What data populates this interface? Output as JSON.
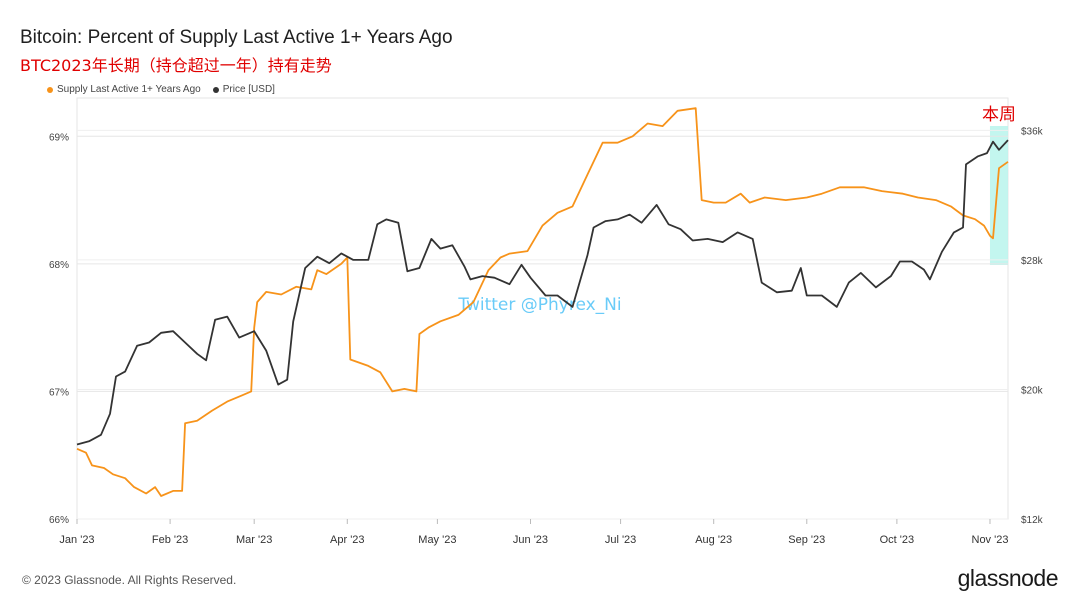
{
  "header": {
    "title": "Bitcoin: Percent of Supply Last Active 1+ Years Ago",
    "subtitle": "BTC2023年长期（持仓超过一年）持有走势"
  },
  "footer": {
    "copyright": "© 2023 Glassnode. All Rights Reserved.",
    "logo_text": "glassnode"
  },
  "colors": {
    "supply": "#f7931a",
    "price": "#333333",
    "highlight": "#b8f5ec",
    "annotation": "#e00000",
    "grid": "#e6e6e6"
  },
  "chart_data": {
    "type": "line",
    "title": "Bitcoin: Percent of Supply Last Active 1+ Years Ago",
    "legend_position": "top-left",
    "grid": true,
    "x_range": [
      "2023-01-01",
      "2023-11-07"
    ],
    "x_ticks": [
      {
        "date": "2023-01-01",
        "label": "Jan '23"
      },
      {
        "date": "2023-02-01",
        "label": "Feb '23"
      },
      {
        "date": "2023-03-01",
        "label": "Mar '23"
      },
      {
        "date": "2023-04-01",
        "label": "Apr '23"
      },
      {
        "date": "2023-05-01",
        "label": "May '23"
      },
      {
        "date": "2023-06-01",
        "label": "Jun '23"
      },
      {
        "date": "2023-07-01",
        "label": "Jul '23"
      },
      {
        "date": "2023-08-01",
        "label": "Aug '23"
      },
      {
        "date": "2023-09-01",
        "label": "Sep '23"
      },
      {
        "date": "2023-10-01",
        "label": "Oct '23"
      },
      {
        "date": "2023-11-01",
        "label": "Nov '23"
      }
    ],
    "y_left": {
      "range": [
        66.0,
        69.3
      ],
      "ticks": [
        {
          "v": 66,
          "label": "66%"
        },
        {
          "v": 67,
          "label": "67%"
        },
        {
          "v": 68,
          "label": "68%"
        },
        {
          "v": 69,
          "label": "69%"
        }
      ]
    },
    "y_right": {
      "range": [
        12000,
        38000
      ],
      "ticks": [
        {
          "v": 12000,
          "label": "$12k"
        },
        {
          "v": 20000,
          "label": "$20k"
        },
        {
          "v": 28000,
          "label": "$28k"
        },
        {
          "v": 36000,
          "label": "$36k"
        }
      ]
    },
    "series": [
      {
        "name": "Supply Last Active 1+ Years Ago",
        "axis": "left",
        "color": "#f7931a",
        "points": [
          [
            "2023-01-01",
            66.55
          ],
          [
            "2023-01-04",
            66.52
          ],
          [
            "2023-01-06",
            66.42
          ],
          [
            "2023-01-10",
            66.4
          ],
          [
            "2023-01-13",
            66.35
          ],
          [
            "2023-01-17",
            66.32
          ],
          [
            "2023-01-20",
            66.25
          ],
          [
            "2023-01-24",
            66.2
          ],
          [
            "2023-01-27",
            66.25
          ],
          [
            "2023-01-29",
            66.18
          ],
          [
            "2023-02-02",
            66.22
          ],
          [
            "2023-02-05",
            66.22
          ],
          [
            "2023-02-06",
            66.75
          ],
          [
            "2023-02-10",
            66.77
          ],
          [
            "2023-02-15",
            66.85
          ],
          [
            "2023-02-20",
            66.92
          ],
          [
            "2023-02-25",
            66.97
          ],
          [
            "2023-02-28",
            67.0
          ],
          [
            "2023-03-01",
            67.5
          ],
          [
            "2023-03-02",
            67.7
          ],
          [
            "2023-03-05",
            67.78
          ],
          [
            "2023-03-10",
            67.76
          ],
          [
            "2023-03-15",
            67.82
          ],
          [
            "2023-03-20",
            67.8
          ],
          [
            "2023-03-22",
            67.95
          ],
          [
            "2023-03-25",
            67.92
          ],
          [
            "2023-03-30",
            68.0
          ],
          [
            "2023-04-01",
            68.05
          ],
          [
            "2023-04-02",
            67.25
          ],
          [
            "2023-04-08",
            67.2
          ],
          [
            "2023-04-12",
            67.15
          ],
          [
            "2023-04-16",
            67.0
          ],
          [
            "2023-04-20",
            67.02
          ],
          [
            "2023-04-24",
            67.0
          ],
          [
            "2023-04-25",
            67.45
          ],
          [
            "2023-04-28",
            67.5
          ],
          [
            "2023-05-02",
            67.55
          ],
          [
            "2023-05-08",
            67.6
          ],
          [
            "2023-05-13",
            67.7
          ],
          [
            "2023-05-18",
            67.95
          ],
          [
            "2023-05-22",
            68.05
          ],
          [
            "2023-05-25",
            68.08
          ],
          [
            "2023-05-31",
            68.1
          ],
          [
            "2023-06-05",
            68.3
          ],
          [
            "2023-06-10",
            68.4
          ],
          [
            "2023-06-15",
            68.45
          ],
          [
            "2023-06-20",
            68.7
          ],
          [
            "2023-06-25",
            68.95
          ],
          [
            "2023-06-30",
            68.95
          ],
          [
            "2023-07-05",
            69.0
          ],
          [
            "2023-07-10",
            69.1
          ],
          [
            "2023-07-15",
            69.08
          ],
          [
            "2023-07-20",
            69.2
          ],
          [
            "2023-07-26",
            69.22
          ],
          [
            "2023-07-28",
            68.5
          ],
          [
            "2023-08-01",
            68.48
          ],
          [
            "2023-08-05",
            68.48
          ],
          [
            "2023-08-10",
            68.55
          ],
          [
            "2023-08-13",
            68.48
          ],
          [
            "2023-08-18",
            68.52
          ],
          [
            "2023-08-25",
            68.5
          ],
          [
            "2023-09-01",
            68.52
          ],
          [
            "2023-09-06",
            68.55
          ],
          [
            "2023-09-12",
            68.6
          ],
          [
            "2023-09-20",
            68.6
          ],
          [
            "2023-09-26",
            68.57
          ],
          [
            "2023-10-03",
            68.55
          ],
          [
            "2023-10-08",
            68.52
          ],
          [
            "2023-10-14",
            68.5
          ],
          [
            "2023-10-19",
            68.45
          ],
          [
            "2023-10-23",
            68.38
          ],
          [
            "2023-10-27",
            68.35
          ],
          [
            "2023-10-30",
            68.3
          ],
          [
            "2023-11-01",
            68.22
          ],
          [
            "2023-11-02",
            68.2
          ],
          [
            "2023-11-04",
            68.75
          ],
          [
            "2023-11-07",
            68.8
          ]
        ]
      },
      {
        "name": "Price [USD]",
        "axis": "right",
        "color": "#333333",
        "points": [
          [
            "2023-01-01",
            16600
          ],
          [
            "2023-01-05",
            16800
          ],
          [
            "2023-01-09",
            17200
          ],
          [
            "2023-01-12",
            18500
          ],
          [
            "2023-01-14",
            20800
          ],
          [
            "2023-01-17",
            21100
          ],
          [
            "2023-01-21",
            22700
          ],
          [
            "2023-01-25",
            22900
          ],
          [
            "2023-01-29",
            23500
          ],
          [
            "2023-02-02",
            23600
          ],
          [
            "2023-02-06",
            22900
          ],
          [
            "2023-02-10",
            22200
          ],
          [
            "2023-02-13",
            21800
          ],
          [
            "2023-02-16",
            24300
          ],
          [
            "2023-02-20",
            24500
          ],
          [
            "2023-02-24",
            23200
          ],
          [
            "2023-03-01",
            23600
          ],
          [
            "2023-03-05",
            22400
          ],
          [
            "2023-03-09",
            20300
          ],
          [
            "2023-03-12",
            20600
          ],
          [
            "2023-03-14",
            24200
          ],
          [
            "2023-03-18",
            27500
          ],
          [
            "2023-03-22",
            28200
          ],
          [
            "2023-03-26",
            27800
          ],
          [
            "2023-03-30",
            28400
          ],
          [
            "2023-04-03",
            28000
          ],
          [
            "2023-04-08",
            28000
          ],
          [
            "2023-04-11",
            30200
          ],
          [
            "2023-04-14",
            30500
          ],
          [
            "2023-04-18",
            30300
          ],
          [
            "2023-04-21",
            27300
          ],
          [
            "2023-04-25",
            27500
          ],
          [
            "2023-04-29",
            29300
          ],
          [
            "2023-05-02",
            28700
          ],
          [
            "2023-05-06",
            28900
          ],
          [
            "2023-05-10",
            27600
          ],
          [
            "2023-05-12",
            26800
          ],
          [
            "2023-05-16",
            27000
          ],
          [
            "2023-05-20",
            26900
          ],
          [
            "2023-05-25",
            26500
          ],
          [
            "2023-05-29",
            27700
          ],
          [
            "2023-06-01",
            26900
          ],
          [
            "2023-06-06",
            25800
          ],
          [
            "2023-06-10",
            25800
          ],
          [
            "2023-06-15",
            25100
          ],
          [
            "2023-06-20",
            28300
          ],
          [
            "2023-06-22",
            30000
          ],
          [
            "2023-06-26",
            30400
          ],
          [
            "2023-06-30",
            30500
          ],
          [
            "2023-07-04",
            30800
          ],
          [
            "2023-07-08",
            30300
          ],
          [
            "2023-07-13",
            31400
          ],
          [
            "2023-07-17",
            30200
          ],
          [
            "2023-07-21",
            29900
          ],
          [
            "2023-07-25",
            29200
          ],
          [
            "2023-07-30",
            29300
          ],
          [
            "2023-08-04",
            29100
          ],
          [
            "2023-08-09",
            29700
          ],
          [
            "2023-08-14",
            29300
          ],
          [
            "2023-08-17",
            26600
          ],
          [
            "2023-08-22",
            26000
          ],
          [
            "2023-08-27",
            26100
          ],
          [
            "2023-08-30",
            27500
          ],
          [
            "2023-09-01",
            25800
          ],
          [
            "2023-09-06",
            25800
          ],
          [
            "2023-09-11",
            25100
          ],
          [
            "2023-09-15",
            26600
          ],
          [
            "2023-09-19",
            27200
          ],
          [
            "2023-09-24",
            26300
          ],
          [
            "2023-09-29",
            27000
          ],
          [
            "2023-10-02",
            27900
          ],
          [
            "2023-10-06",
            27900
          ],
          [
            "2023-10-10",
            27400
          ],
          [
            "2023-10-12",
            26800
          ],
          [
            "2023-10-16",
            28500
          ],
          [
            "2023-10-20",
            29700
          ],
          [
            "2023-10-23",
            30000
          ],
          [
            "2023-10-24",
            33900
          ],
          [
            "2023-10-28",
            34400
          ],
          [
            "2023-10-31",
            34600
          ],
          [
            "2023-11-02",
            35300
          ],
          [
            "2023-11-04",
            34800
          ],
          [
            "2023-11-07",
            35400
          ]
        ]
      }
    ],
    "annotations": [
      {
        "text": "本周",
        "start": "2023-11-01",
        "end": "2023-11-07"
      },
      {
        "text": "Twitter @Phyrex_Ni"
      }
    ]
  }
}
